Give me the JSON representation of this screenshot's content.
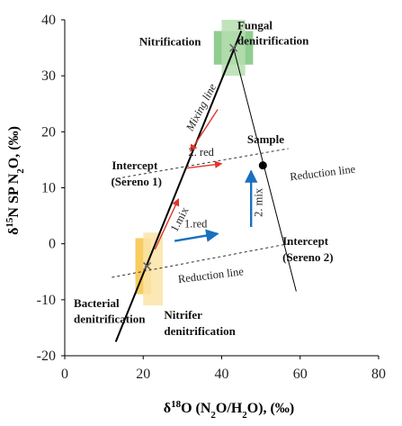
{
  "chart_data": {
    "type": "scatter",
    "xlabel_parts": [
      "δ",
      "18",
      "O (N",
      "2",
      "O/H",
      "2",
      "O), (‰)"
    ],
    "ylabel_parts": [
      "δ",
      "15",
      "N SP N",
      "2",
      "O, (‰)"
    ],
    "xlim": [
      0,
      80
    ],
    "ylim": [
      -20,
      40
    ],
    "x_ticks": [
      0,
      20,
      40,
      60,
      80
    ],
    "y_ticks": [
      -20,
      -10,
      0,
      10,
      20,
      30,
      40
    ],
    "grid": false,
    "source_boxes": [
      {
        "name": "nitrification",
        "x_range": [
          38,
          48
        ],
        "y_range": [
          32,
          38
        ],
        "color": "#7cc47c"
      },
      {
        "name": "fungal-denitrification",
        "x_range": [
          40,
          46
        ],
        "y_range": [
          30,
          40
        ],
        "color": "#b6deb0"
      },
      {
        "name": "bacterial-denitrification",
        "x_range": [
          18,
          22
        ],
        "y_range": [
          -9,
          1
        ],
        "color": "#f6c445"
      },
      {
        "name": "nitrifer-denitrification",
        "x_range": [
          20,
          25
        ],
        "y_range": [
          -11,
          2
        ],
        "color": "#fbe4a8"
      }
    ],
    "mixing_line": {
      "x": [
        13,
        45
      ],
      "y": [
        -17.5,
        38
      ]
    },
    "sample_line": {
      "x": [
        43,
        59
      ],
      "y": [
        35,
        -8.5
      ]
    },
    "reduction_lines": [
      {
        "x": [
          12,
          57
        ],
        "y": [
          11.5,
          17
        ]
      },
      {
        "x": [
          12,
          57
        ],
        "y": [
          -6,
          0
        ]
      }
    ],
    "source_markers": [
      {
        "name": "nitrification-source",
        "x": 43,
        "y": 35
      },
      {
        "name": "bacterial-source",
        "x": 21,
        "y": -4
      }
    ],
    "sample_point": {
      "x": 50.5,
      "y": 14
    },
    "arrows": [
      {
        "name": "mixing-arrow",
        "x": [
          39,
          32
        ],
        "y": [
          24,
          16.5
        ],
        "color": "#e0352b"
      },
      {
        "name": "red-arrow-2",
        "x": [
          31,
          40
        ],
        "y": [
          13.5,
          14.3
        ],
        "color": "#e0352b"
      },
      {
        "name": "mix-arrow-1",
        "x": [
          23,
          29
        ],
        "y": [
          -1,
          8
        ],
        "color": "#e0352b"
      },
      {
        "name": "red-arrow-1",
        "x": [
          28,
          39
        ],
        "y": [
          0.5,
          1.8
        ],
        "color": "#1a6fbf"
      },
      {
        "name": "mix-arrow-2",
        "x": [
          47.5,
          47.5
        ],
        "y": [
          3,
          13
        ],
        "color": "#1a6fbf"
      }
    ],
    "annotations": [
      {
        "name": "fungal-label-1",
        "text": "Fungal",
        "x": 44,
        "y": 38.3,
        "style": "b",
        "color": "#111"
      },
      {
        "name": "fungal-label-2",
        "text": "denitrification",
        "x": 44,
        "y": 35.6,
        "style": "b",
        "color": "#111"
      },
      {
        "name": "nitrification-label",
        "text": "Nitrification",
        "x": 19,
        "y": 35.4,
        "style": "b",
        "color": "#111"
      },
      {
        "name": "sample-label",
        "text": "Sample",
        "x": 46.5,
        "y": 18,
        "style": "b",
        "color": "#111"
      },
      {
        "name": "intercept1-label-1",
        "text": "Intercept",
        "x": 12,
        "y": 13.3,
        "style": "b",
        "color": "#111"
      },
      {
        "name": "intercept1-label-2",
        "text": "(Sereno 1)",
        "x": 11.8,
        "y": 10.4,
        "style": "b",
        "color": "#111"
      },
      {
        "name": "intercept2-label-1",
        "text": "Intercept",
        "x": 55.5,
        "y": -0.2,
        "style": "b",
        "color": "#111"
      },
      {
        "name": "intercept2-label-2",
        "text": "(Sereno 2)",
        "x": 55.5,
        "y": -3.1,
        "style": "b",
        "color": "#111"
      },
      {
        "name": "bacterial-label-1",
        "text": "Bacterial",
        "x": 2.3,
        "y": -11.3,
        "style": "b",
        "color": "#111"
      },
      {
        "name": "bacterial-label-2",
        "text": "denitrification",
        "x": 2.3,
        "y": -14.1,
        "style": "b",
        "color": "#111"
      },
      {
        "name": "nitrifer-label-1",
        "text": "Nitrifer",
        "x": 25.3,
        "y": -13.4,
        "style": "b",
        "color": "#111"
      },
      {
        "name": "nitrifer-label-2",
        "text": "denitrification",
        "x": 25.3,
        "y": -16.3,
        "style": "b",
        "color": "#111"
      },
      {
        "name": "mixing-line-label",
        "text": "Mixing line",
        "x": 32.5,
        "y": 20,
        "style": "i",
        "color": "#222",
        "rotate": -62
      },
      {
        "name": "red2-label",
        "text": "2. red",
        "x": 31.5,
        "y": 15.7,
        "style": "n",
        "color": "#222"
      },
      {
        "name": "mix1-label",
        "text": "1.mix",
        "x": 28.5,
        "y": 2,
        "style": "n",
        "color": "#222",
        "rotate": -62
      },
      {
        "name": "red1-label",
        "text": "1.red",
        "x": 30.5,
        "y": 2.9,
        "style": "n",
        "color": "#1a6fbf"
      },
      {
        "name": "mix2-label",
        "text": "2. mix",
        "x": 50.3,
        "y": 4.8,
        "style": "n",
        "color": "#1a6fbf",
        "rotate": -90
      },
      {
        "name": "reduction-line-label-upper",
        "text": "Reduction line",
        "x": 57.5,
        "y": 11.3,
        "style": "n",
        "color": "#222",
        "rotate": -7
      },
      {
        "name": "reduction-line-label-lower",
        "text": "Reduction line",
        "x": 29,
        "y": -7,
        "style": "n",
        "color": "#222",
        "rotate": -7
      }
    ]
  }
}
